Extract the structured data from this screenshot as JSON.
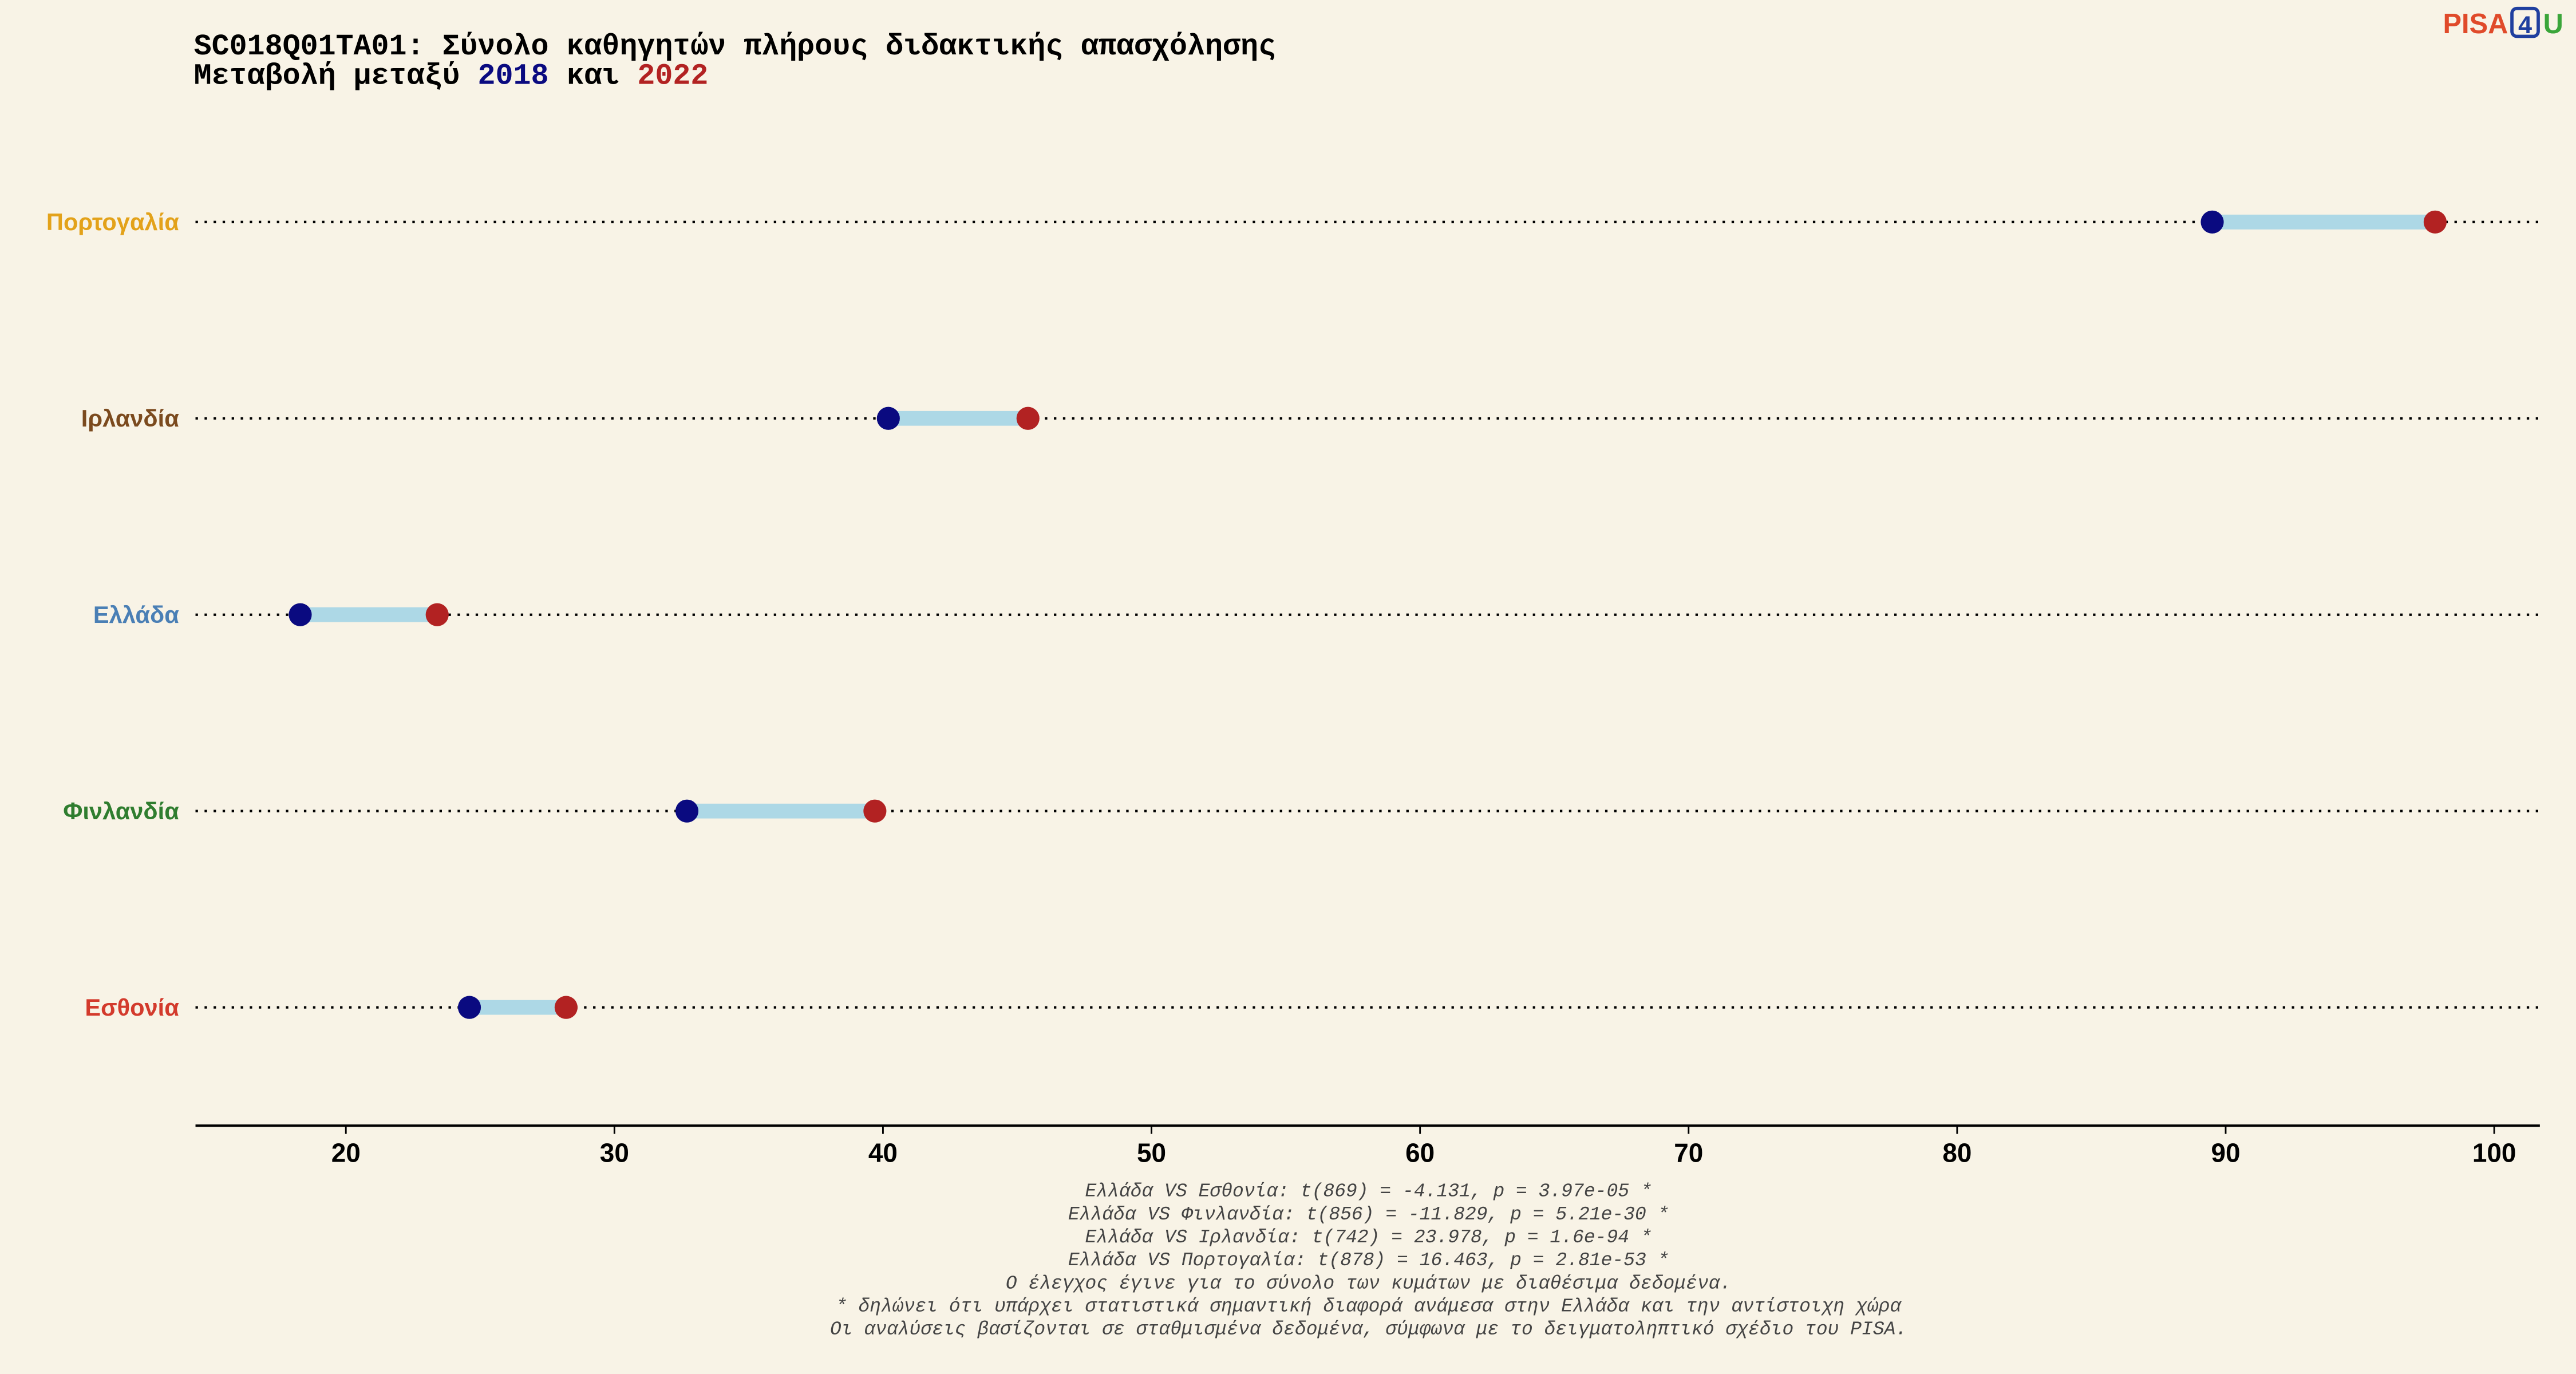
{
  "chart_data": {
    "type": "dumbbell",
    "title": "SC018Q01TA01: Σύνολο καθηγητών πλήρους διδακτικής απασχόλησης",
    "subtitle": {
      "prefix": "Μεταβολή μεταξύ",
      "middle": "και"
    },
    "logo": {
      "left": "PISA",
      "box": "4",
      "right": "U"
    },
    "categories": [
      "Πορτογαλία",
      "Ιρλανδία",
      "Ελλάδα",
      "Φινλανδία",
      "Εσθονία"
    ],
    "category_colors": [
      "#e3a21a",
      "#7b4a1e",
      "#4a7fb5",
      "#2f7d2f",
      "#d33a2c"
    ],
    "series": [
      {
        "name": "2018",
        "color": "#0a0a80",
        "values": [
          89.5,
          40.2,
          18.3,
          32.7,
          24.6
        ]
      },
      {
        "name": "2022",
        "color": "#b22222",
        "values": [
          97.8,
          45.4,
          23.4,
          39.7,
          28.2
        ]
      }
    ],
    "connector_color": "#add8e6",
    "xlim": [
      14.4,
      101.7
    ],
    "xticks": [
      20,
      30,
      40,
      50,
      60,
      70,
      80,
      90,
      100
    ],
    "notes": [
      "Ελλάδα VS Εσθονία: t(869) = -4.131, p = 3.97e-05 *",
      "Ελλάδα VS Φινλανδία: t(856) = -11.829, p = 5.21e-30 *",
      "Ελλάδα VS Ιρλανδία: t(742) = 23.978, p = 1.6e-94 *",
      "Ελλάδα VS Πορτογαλία: t(878) = 16.463, p = 2.81e-53 *",
      "Ο έλεγχος έγινε για το σύνολο των κυμάτων με διαθέσιμα δεδομένα.",
      "* δηλώνει ότι υπάρχει στατιστικά σημαντική διαφορά ανάμεσα στην Ελλάδα και την αντίστοιχη χώρα",
      "Οι αναλύσεις βασίζονται σε σταθμισμένα δεδομένα, σύμφωνα με το δειγματοληπτικό σχέδιο του PISA."
    ]
  }
}
